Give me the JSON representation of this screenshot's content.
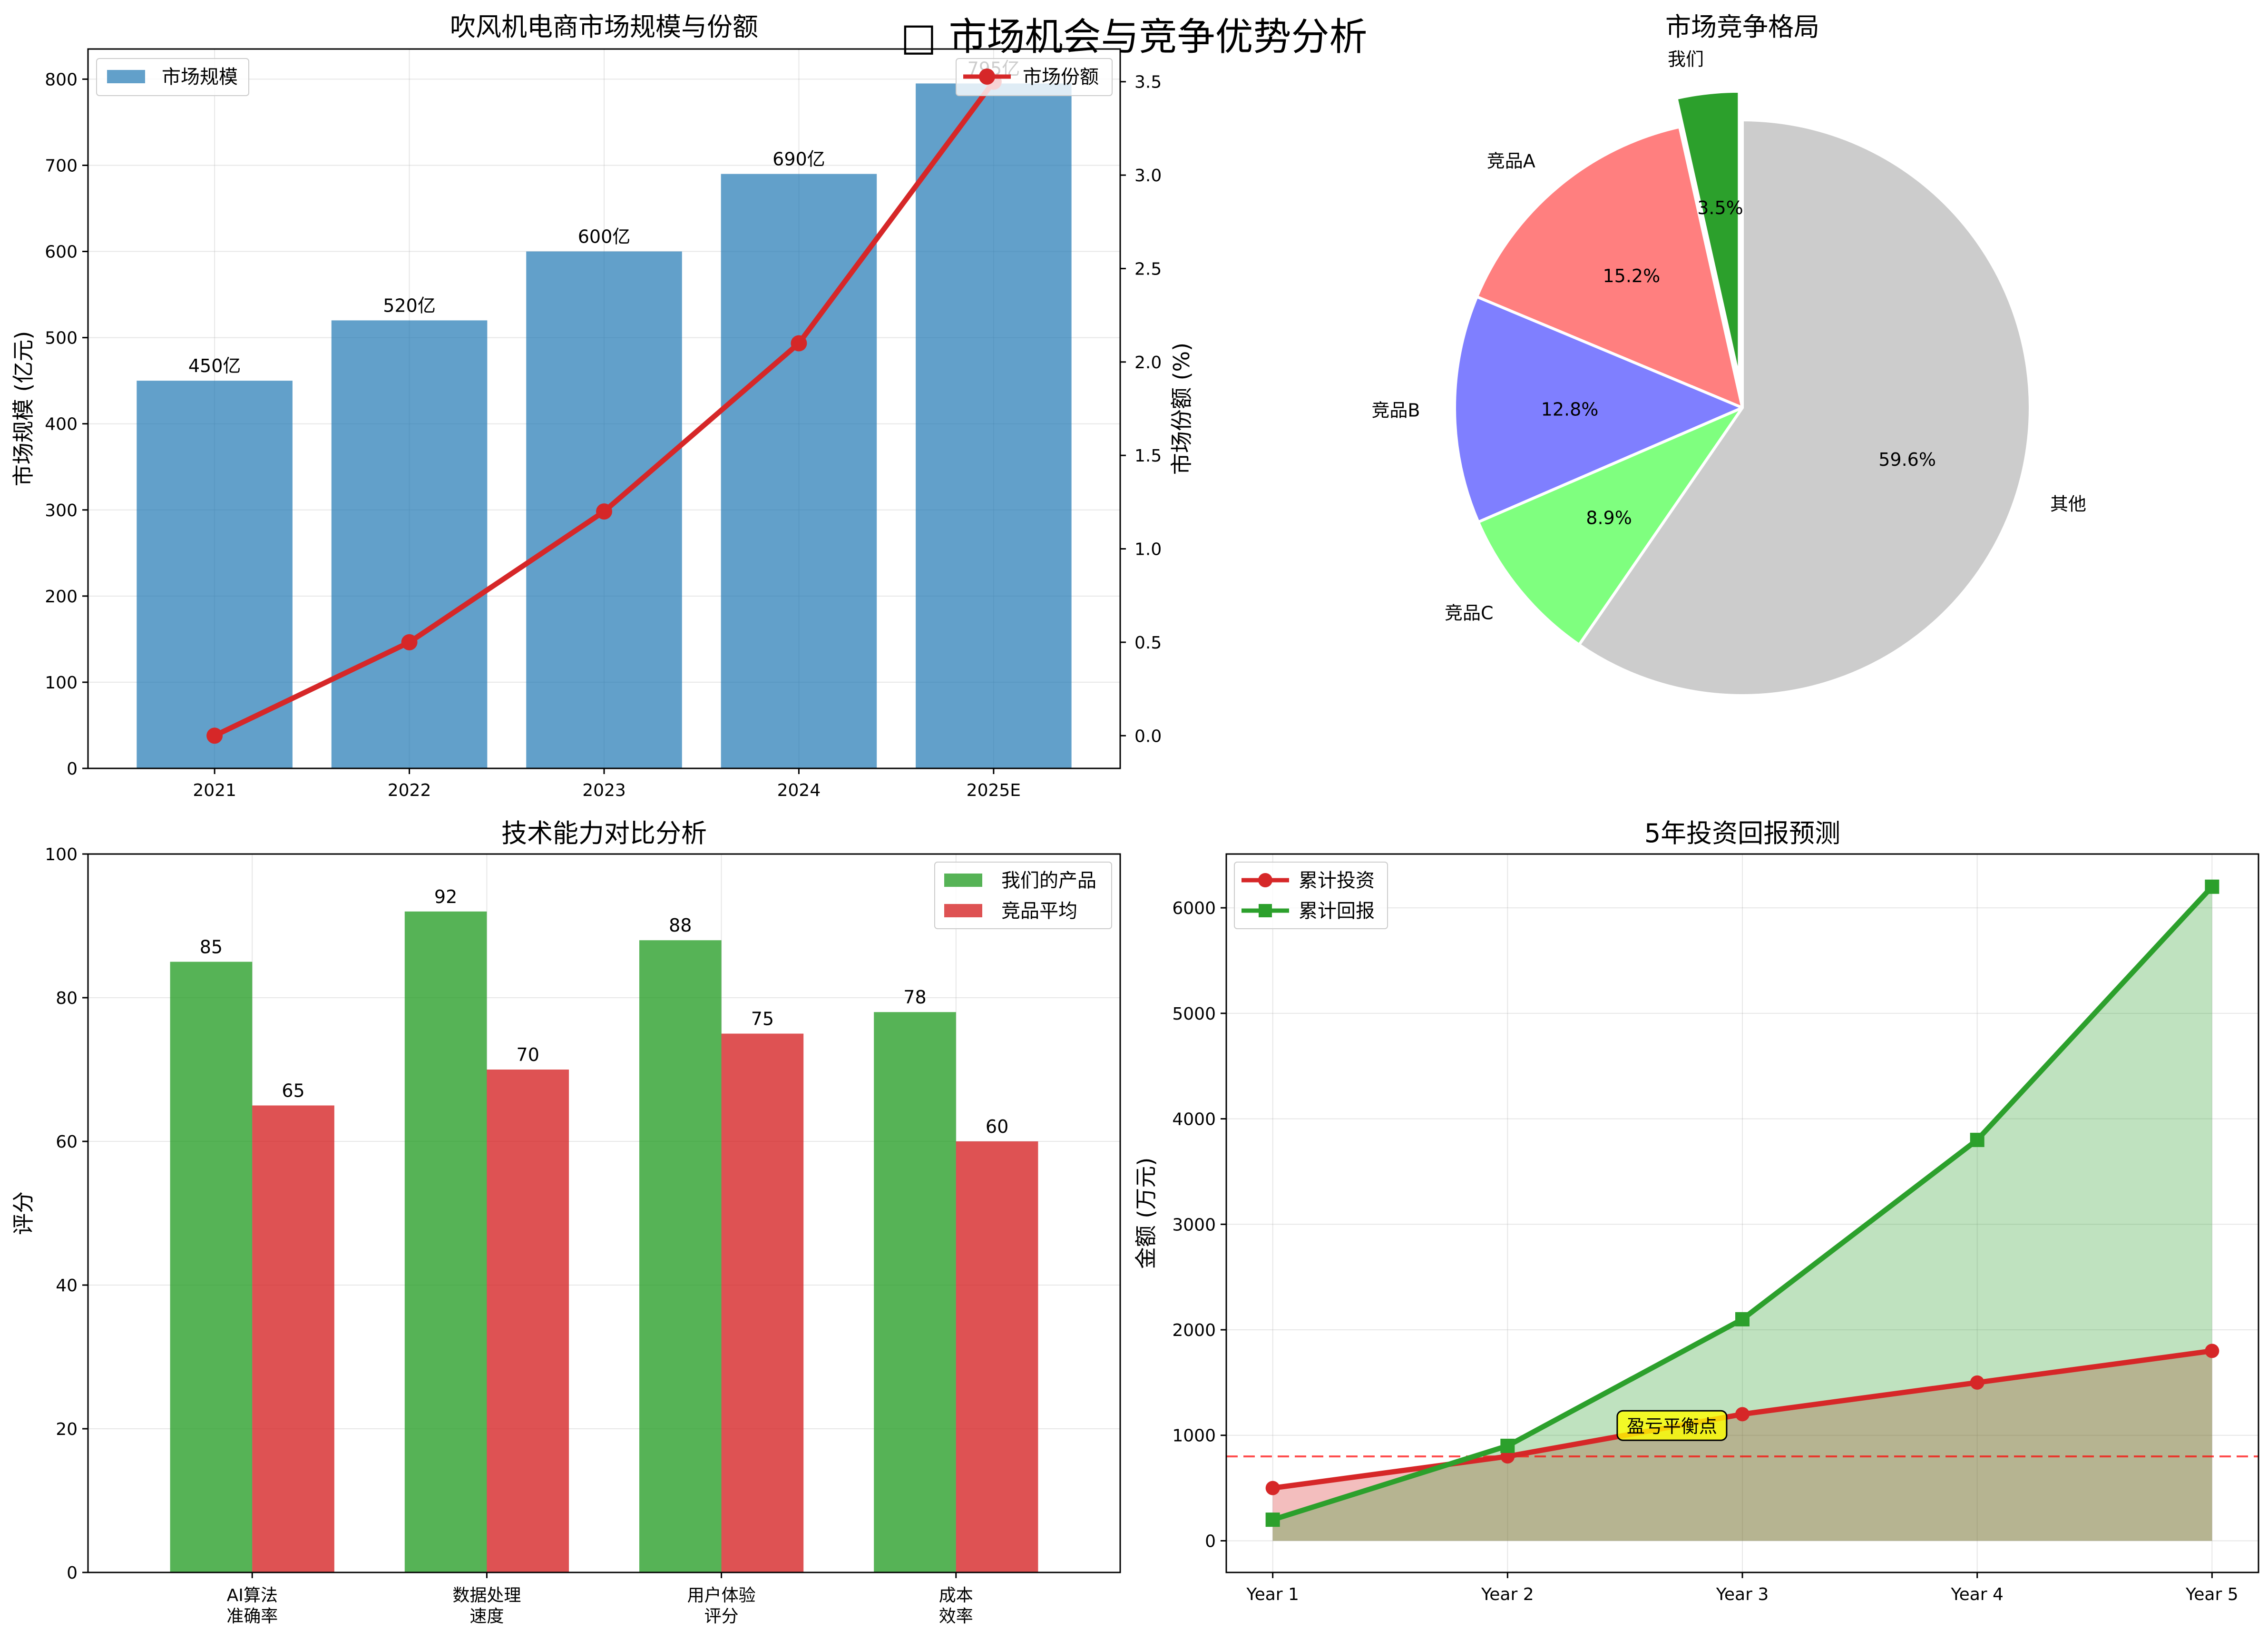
{
  "suptitle": "□ 市场机会与竞争优势分析",
  "chart_data": [
    {
      "type": "bar",
      "title": "吹风机电商市场规模与份额",
      "categories": [
        "2021",
        "2022",
        "2023",
        "2024",
        "2025E"
      ],
      "ylabel": "市场规模 (亿元)",
      "y2label": "市场份额 (%)",
      "ylim": [
        0,
        835
      ],
      "y2lim": [
        -0.175,
        3.675
      ],
      "yticks": [
        0,
        100,
        200,
        300,
        400,
        500,
        600,
        700,
        800
      ],
      "y2ticks": [
        "0.0",
        "0.5",
        "1.0",
        "1.5",
        "2.0",
        "2.5",
        "3.0",
        "3.5"
      ],
      "grid": true,
      "series": [
        {
          "name": "市场规模",
          "type": "bar",
          "axis": "left",
          "color": "#1f77b4",
          "values": [
            450,
            520,
            600,
            690,
            795
          ],
          "labels": [
            "450亿",
            "520亿",
            "600亿",
            "690亿",
            "795亿"
          ]
        },
        {
          "name": "市场份额",
          "type": "line",
          "axis": "right",
          "color": "#d62728",
          "values": [
            0.0,
            0.5,
            1.2,
            2.1,
            3.5
          ]
        }
      ],
      "legend": [
        "upper-left",
        "upper-right"
      ]
    },
    {
      "type": "pie",
      "title": "市场竞争格局",
      "labels": [
        "我们",
        "竞品A",
        "竞品B",
        "竞品C",
        "其他"
      ],
      "values": [
        3.5,
        15.2,
        12.8,
        8.9,
        59.6
      ],
      "pct_labels": [
        "3.5%",
        "15.2%",
        "12.8%",
        "8.9%",
        "59.6%"
      ],
      "colors": [
        "#2ca02c",
        "#ff7f7f",
        "#7f7fff",
        "#7fff7f",
        "#cccccc"
      ],
      "explode": [
        0.1,
        0,
        0,
        0,
        0
      ],
      "startangle": 90
    },
    {
      "type": "bar",
      "title": "技术能力对比分析",
      "categories": [
        [
          "AI算法",
          "准确率"
        ],
        [
          "数据处理",
          "速度"
        ],
        [
          "用户体验",
          "评分"
        ],
        [
          "成本",
          "效率"
        ]
      ],
      "ylabel": "评分",
      "ylim": [
        0,
        100
      ],
      "yticks": [
        0,
        20,
        40,
        60,
        80,
        100
      ],
      "grid": true,
      "series": [
        {
          "name": "我们的产品",
          "color": "#2ca02c",
          "values": [
            85,
            92,
            88,
            78
          ]
        },
        {
          "name": "竞品平均",
          "color": "#d62728",
          "values": [
            65,
            70,
            75,
            60
          ]
        }
      ],
      "legend": "upper-right"
    },
    {
      "type": "line",
      "title": "5年投资回报预测",
      "x": [
        "Year 1",
        "Year 2",
        "Year 3",
        "Year 4",
        "Year 5"
      ],
      "ylabel": "金额 (万元)",
      "ylim": [
        -300,
        6510
      ],
      "yticks": [
        0,
        1000,
        2000,
        3000,
        4000,
        5000,
        6000
      ],
      "grid": true,
      "series": [
        {
          "name": "累计投资",
          "color": "#d62728",
          "marker": "circle",
          "values": [
            500,
            800,
            1200,
            1500,
            1800
          ]
        },
        {
          "name": "累计回报",
          "color": "#2ca02c",
          "marker": "square",
          "values": [
            200,
            900,
            2100,
            3800,
            6200
          ]
        }
      ],
      "reference_line": {
        "y": 800,
        "style": "dashed",
        "color": "#ff0000"
      },
      "annotation": {
        "text": "盈亏平衡点",
        "x": 2.7,
        "y": 1070,
        "bg": "#ffff00"
      },
      "legend": "upper-left"
    }
  ]
}
